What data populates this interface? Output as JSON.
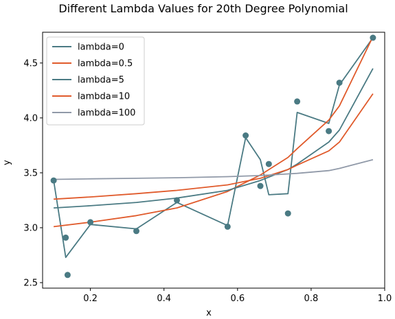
{
  "chart_data": {
    "type": "line",
    "title": "Different Lambda Values for 20th Degree Polynomial",
    "xlabel": "x",
    "ylabel": "y",
    "xlim": [
      0.07,
      1.0
    ],
    "ylim": [
      2.45,
      4.78
    ],
    "xticks": [
      0.2,
      0.4,
      0.6,
      0.8,
      1.0
    ],
    "xtick_labels": [
      "0.2",
      "0.4",
      "0.6",
      "0.8",
      "1.0"
    ],
    "yticks": [
      2.5,
      3.0,
      3.5,
      4.0,
      4.5
    ],
    "ytick_labels": [
      "2.5",
      "3.0",
      "3.5",
      "4.0",
      "4.5"
    ],
    "grid": false,
    "legend_position": "top-left",
    "scatter": {
      "color": "#4a7a83",
      "x": [
        0.1,
        0.133,
        0.138,
        0.2,
        0.325,
        0.435,
        0.573,
        0.622,
        0.662,
        0.685,
        0.737,
        0.762,
        0.848,
        0.877,
        0.968
      ],
      "y": [
        3.43,
        2.91,
        2.57,
        3.05,
        2.97,
        3.25,
        3.01,
        3.84,
        3.38,
        3.58,
        3.13,
        4.15,
        3.88,
        4.32,
        4.73
      ]
    },
    "series": [
      {
        "name": "lambda=0",
        "color": "#4a7a83",
        "x": [
          0.1,
          0.133,
          0.2,
          0.325,
          0.435,
          0.573,
          0.622,
          0.662,
          0.685,
          0.737,
          0.762,
          0.848,
          0.877,
          0.968
        ],
        "y": [
          3.43,
          2.73,
          3.03,
          2.99,
          3.23,
          3.02,
          3.82,
          3.62,
          3.3,
          3.31,
          4.05,
          3.95,
          4.3,
          4.73
        ]
      },
      {
        "name": "lambda=0.5",
        "color": "#e05a2b",
        "x": [
          0.1,
          0.2,
          0.325,
          0.435,
          0.573,
          0.662,
          0.737,
          0.762,
          0.848,
          0.877,
          0.968
        ],
        "y": [
          3.01,
          3.05,
          3.11,
          3.18,
          3.33,
          3.48,
          3.64,
          3.72,
          3.98,
          4.11,
          4.74
        ]
      },
      {
        "name": "lambda=5",
        "color": "#4a7a83",
        "x": [
          0.1,
          0.2,
          0.325,
          0.435,
          0.573,
          0.662,
          0.737,
          0.762,
          0.848,
          0.877,
          0.968
        ],
        "y": [
          3.18,
          3.2,
          3.23,
          3.27,
          3.34,
          3.43,
          3.53,
          3.58,
          3.78,
          3.89,
          4.45
        ]
      },
      {
        "name": "lambda=10",
        "color": "#e05a2b",
        "x": [
          0.1,
          0.2,
          0.325,
          0.435,
          0.573,
          0.662,
          0.737,
          0.762,
          0.848,
          0.877,
          0.968
        ],
        "y": [
          3.26,
          3.28,
          3.31,
          3.34,
          3.39,
          3.45,
          3.53,
          3.57,
          3.7,
          3.78,
          4.22
        ]
      },
      {
        "name": "lambda=100",
        "color": "#9099a8",
        "x": [
          0.1,
          0.2,
          0.325,
          0.435,
          0.573,
          0.662,
          0.737,
          0.762,
          0.848,
          0.877,
          0.968
        ],
        "y": [
          3.44,
          3.445,
          3.45,
          3.455,
          3.465,
          3.475,
          3.49,
          3.495,
          3.52,
          3.54,
          3.62
        ]
      }
    ]
  }
}
